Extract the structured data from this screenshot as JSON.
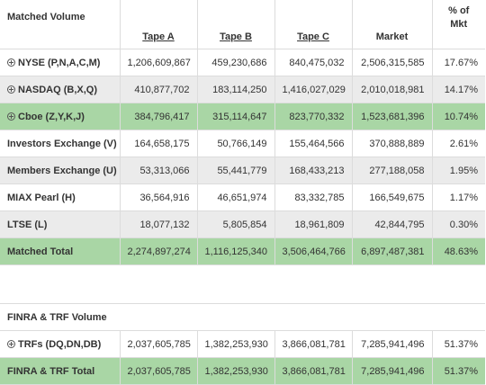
{
  "header": {
    "label": "Matched Volume",
    "tape_a": "Tape A",
    "tape_b": "Tape B",
    "tape_c": "Tape C",
    "market": "Market",
    "pct_line1": "% of",
    "pct_line2": "Mkt"
  },
  "rows": [
    {
      "label": "NYSE (P,N,A,C,M)",
      "tape_a": "1,206,609,867",
      "tape_b": "459,230,686",
      "tape_c": "840,475,032",
      "market": "2,506,315,585",
      "pct": "17.67%"
    },
    {
      "label": "NASDAQ (B,X,Q)",
      "tape_a": "410,877,702",
      "tape_b": "183,114,250",
      "tape_c": "1,416,027,029",
      "market": "2,010,018,981",
      "pct": "14.17%"
    },
    {
      "label": "Cboe (Z,Y,K,J)",
      "tape_a": "384,796,417",
      "tape_b": "315,114,647",
      "tape_c": "823,770,332",
      "market": "1,523,681,396",
      "pct": "10.74%"
    },
    {
      "label": "Investors Exchange (V)",
      "tape_a": "164,658,175",
      "tape_b": "50,766,149",
      "tape_c": "155,464,566",
      "market": "370,888,889",
      "pct": "2.61%"
    },
    {
      "label": "Members Exchange (U)",
      "tape_a": "53,313,066",
      "tape_b": "55,441,779",
      "tape_c": "168,433,213",
      "market": "277,188,058",
      "pct": "1.95%"
    },
    {
      "label": "MIAX Pearl (H)",
      "tape_a": "36,564,916",
      "tape_b": "46,651,974",
      "tape_c": "83,332,785",
      "market": "166,549,675",
      "pct": "1.17%"
    },
    {
      "label": "LTSE (L)",
      "tape_a": "18,077,132",
      "tape_b": "5,805,854",
      "tape_c": "18,961,809",
      "market": "42,844,795",
      "pct": "0.30%"
    }
  ],
  "matched_total": {
    "label": "Matched Total",
    "tape_a": "2,274,897,274",
    "tape_b": "1,116,125,340",
    "tape_c": "3,506,464,766",
    "market": "6,897,487,381",
    "pct": "48.63%"
  },
  "finra_section": {
    "label": "FINRA & TRF Volume"
  },
  "trf_row": {
    "label": "TRFs (DQ,DN,DB)",
    "tape_a": "2,037,605,785",
    "tape_b": "1,382,253,930",
    "tape_c": "3,866,081,781",
    "market": "7,285,941,496",
    "pct": "51.37%"
  },
  "finra_total": {
    "label": "FINRA & TRF Total",
    "tape_a": "2,037,605,785",
    "tape_b": "1,382,253,930",
    "tape_c": "3,866,081,781",
    "market": "7,285,941,496",
    "pct": "51.37%"
  },
  "colors": {
    "green_row": "#a9d6a5",
    "gray_row": "#ebebeb",
    "border": "#dcdcdc"
  },
  "icons": {
    "expand": "plus-circle-icon"
  }
}
